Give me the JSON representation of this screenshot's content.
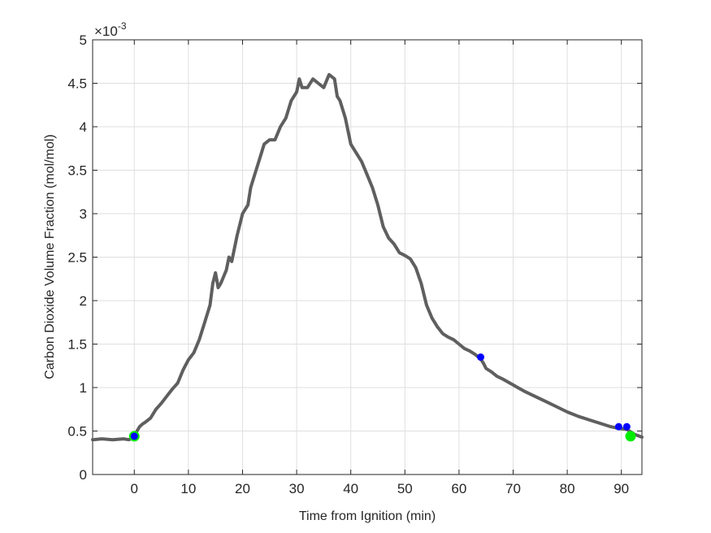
{
  "chart_data": {
    "type": "line",
    "xlabel": "Time from Ignition (min)",
    "ylabel": "Carbon Dioxide Volume Fraction (mol/mol)",
    "y_exponent_base": "×10",
    "y_exponent_power": "-3",
    "xlim": [
      -7.7,
      93.8
    ],
    "ylim": [
      0,
      5
    ],
    "x_ticks": [
      0,
      10,
      20,
      30,
      40,
      50,
      60,
      70,
      80,
      90
    ],
    "x_tick_labels": [
      "0",
      "10",
      "20",
      "30",
      "40",
      "50",
      "60",
      "70",
      "80",
      "90"
    ],
    "y_ticks": [
      0,
      0.5,
      1,
      1.5,
      2,
      2.5,
      3,
      3.5,
      4,
      4.5,
      5
    ],
    "y_tick_labels": [
      "0",
      "0.5",
      "1",
      "1.5",
      "2",
      "2.5",
      "3",
      "3.5",
      "4",
      "4.5",
      "5"
    ],
    "grid": true,
    "line_color": "#5f5f5f",
    "series": [
      {
        "x": [
          -7.7,
          -6,
          -4,
          -2,
          -1,
          0,
          0.5,
          1,
          1.5,
          2,
          3,
          4,
          5,
          6,
          7,
          8,
          9,
          10,
          11,
          12,
          13,
          14,
          14.5,
          15,
          15.5,
          16,
          17,
          17.5,
          18,
          18.5,
          19,
          20,
          21,
          21.5,
          22,
          23,
          24,
          25,
          26,
          27,
          28,
          29,
          30,
          30.5,
          31,
          32,
          33,
          34,
          35,
          36,
          37,
          37.5,
          38,
          39,
          40,
          41,
          42,
          43,
          44,
          45,
          46,
          47,
          48,
          49,
          50,
          51,
          52,
          53,
          54,
          55,
          56,
          57,
          58,
          59,
          60,
          61,
          62,
          63,
          64,
          64.5,
          65,
          66,
          67,
          68,
          70,
          72,
          74,
          76,
          78,
          80,
          82,
          84,
          86,
          88,
          89.5,
          91,
          92.5,
          93.8
        ],
        "y": [
          0.4,
          0.41,
          0.4,
          0.41,
          0.4,
          0.43,
          0.5,
          0.55,
          0.58,
          0.6,
          0.65,
          0.75,
          0.82,
          0.9,
          0.98,
          1.05,
          1.2,
          1.32,
          1.4,
          1.55,
          1.75,
          1.95,
          2.2,
          2.32,
          2.15,
          2.2,
          2.35,
          2.5,
          2.45,
          2.6,
          2.75,
          3.0,
          3.1,
          3.3,
          3.4,
          3.6,
          3.8,
          3.85,
          3.85,
          4.0,
          4.1,
          4.3,
          4.4,
          4.55,
          4.45,
          4.45,
          4.55,
          4.5,
          4.45,
          4.6,
          4.55,
          4.35,
          4.3,
          4.1,
          3.8,
          3.7,
          3.6,
          3.45,
          3.3,
          3.1,
          2.85,
          2.72,
          2.65,
          2.55,
          2.52,
          2.48,
          2.38,
          2.2,
          1.95,
          1.8,
          1.7,
          1.62,
          1.58,
          1.55,
          1.5,
          1.45,
          1.42,
          1.38,
          1.33,
          1.28,
          1.22,
          1.18,
          1.13,
          1.1,
          1.03,
          0.96,
          0.9,
          0.84,
          0.78,
          0.72,
          0.67,
          0.63,
          0.59,
          0.55,
          0.53,
          0.52,
          0.46,
          0.43
        ]
      }
    ],
    "markers": [
      {
        "x": 0,
        "y": 0.44,
        "color": "#00ee00",
        "size": "large"
      },
      {
        "x": 0,
        "y": 0.44,
        "color": "#0000ff",
        "size": "small"
      },
      {
        "x": 64,
        "y": 1.35,
        "color": "#0000ff",
        "size": "small"
      },
      {
        "x": 89.5,
        "y": 0.55,
        "color": "#0000ff",
        "size": "small"
      },
      {
        "x": 91,
        "y": 0.55,
        "color": "#0000ff",
        "size": "small"
      },
      {
        "x": 91.7,
        "y": 0.44,
        "color": "#00ee00",
        "size": "large"
      }
    ]
  }
}
